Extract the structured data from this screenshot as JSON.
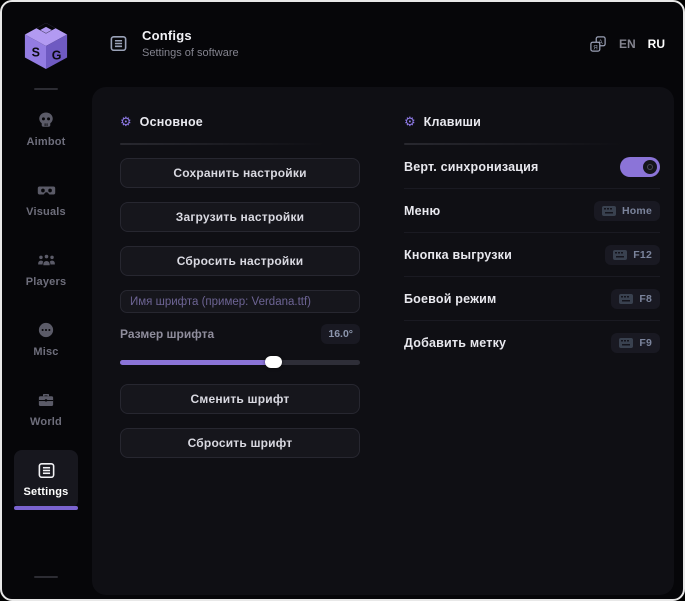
{
  "header": {
    "title": "Configs",
    "subtitle": "Settings of software",
    "lang_en": "EN",
    "lang_ru": "RU"
  },
  "sidebar": {
    "items": [
      {
        "label": "Aimbot",
        "icon": "skull-icon",
        "active": false
      },
      {
        "label": "Visuals",
        "icon": "vr-goggles-icon",
        "active": false
      },
      {
        "label": "Players",
        "icon": "players-icon",
        "active": false
      },
      {
        "label": "Misc",
        "icon": "misc-dots-icon",
        "active": false
      },
      {
        "label": "World",
        "icon": "briefcase-icon",
        "active": false
      },
      {
        "label": "Settings",
        "icon": "list-icon",
        "active": true
      }
    ]
  },
  "main_section": {
    "title": "Основное",
    "buttons_top": [
      "Сохранить настройки",
      "Загрузить настройки",
      "Сбросить настройки"
    ],
    "font_name_placeholder": "Имя шрифта (пример: Verdana.ttf)",
    "font_size_label": "Размер шрифта",
    "font_size_value": "16.0°",
    "slider_percent": 64,
    "buttons_bottom": [
      "Сменить шрифт",
      "Сбросить шрифт"
    ]
  },
  "keys_section": {
    "title": "Клавиши",
    "rows": [
      {
        "label": "Верт. синхронизация",
        "control": "toggle",
        "state": true
      },
      {
        "label": "Меню",
        "control": "keybind",
        "key": "Home"
      },
      {
        "label": "Кнопка выгрузки",
        "control": "keybind",
        "key": "F12"
      },
      {
        "label": "Боевой режим",
        "control": "keybind",
        "key": "F8"
      },
      {
        "label": "Добавить метку",
        "control": "keybind",
        "key": "F9"
      }
    ]
  },
  "colors": {
    "accent": "#8b74d8",
    "logo_purple": "#9f87ea",
    "card_bg": "#0f0f14",
    "window_bg": "#060609",
    "active_underline": "#7a63cf"
  }
}
